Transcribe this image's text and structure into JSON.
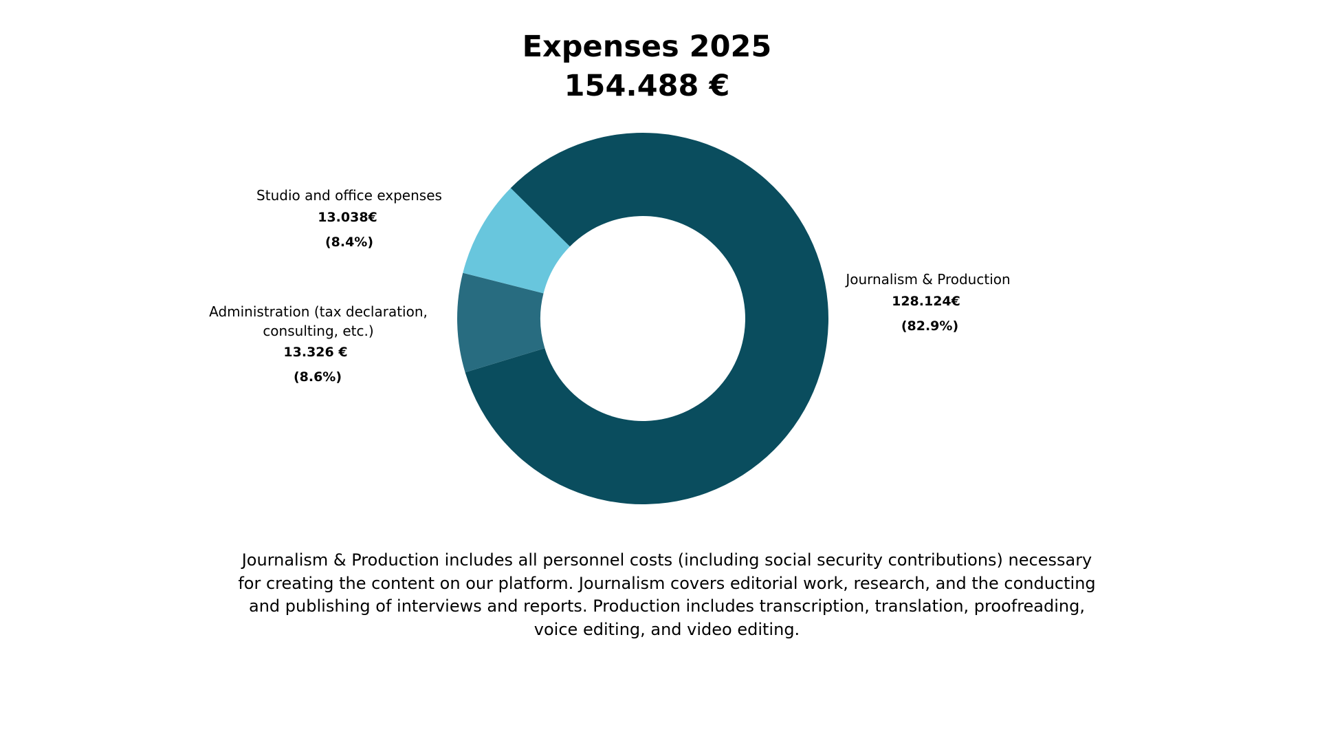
{
  "chart_data": {
    "type": "pie",
    "variant": "donut",
    "title": "Expenses 2025",
    "subtitle": "154.488 €",
    "total": 154488,
    "unit": "€",
    "slices": [
      {
        "name": "Journalism & Production",
        "value": 128124,
        "value_label": "128.124€",
        "percent": 82.9,
        "percent_label": "(82.9%)",
        "color": "#0a4d5e"
      },
      {
        "name": "Administration (tax declaration, consulting, etc.)",
        "name_lines": [
          "Administration (tax declaration,",
          "consulting, etc.)"
        ],
        "value": 13326,
        "value_label": "13.326 €",
        "percent": 8.6,
        "percent_label": "(8.6%)",
        "color": "#286c80"
      },
      {
        "name": "Studio and office expenses",
        "value": 13038,
        "value_label": "13.038€",
        "percent": 8.4,
        "percent_label": "(8.4%)",
        "color": "#68c6dd"
      }
    ],
    "legend": "none",
    "labels_placement": "outside"
  },
  "note": "Journalism & Production includes all personnel costs (including social security contributions) necessary for creating the content on our platform. Journalism covers editorial work, research, and the conducting and publishing of interviews and reports. Production includes transcription, translation, proofreading, voice editing, and video editing."
}
